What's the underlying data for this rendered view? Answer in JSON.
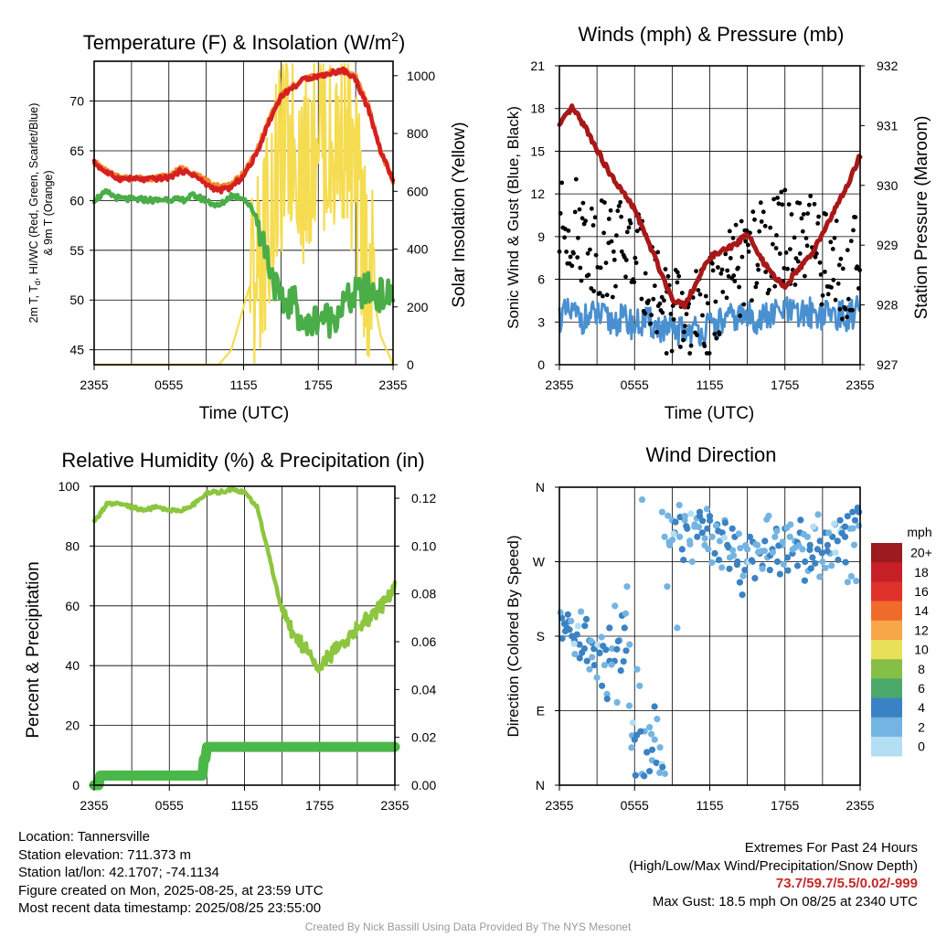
{
  "chart_data": [
    {
      "type": "line",
      "title": "Temperature (F) & Insolation (W/m2)",
      "title_parts": [
        "Temperature (F) & Insolation (W/m",
        "2",
        ")"
      ],
      "xlabel": "Time (UTC)",
      "ylabel_left": [
        "2m T, Td, HI/WC (Red, Green, Scarlet/Blue)",
        "& 9m T (Orange)"
      ],
      "ylabel_left_parts": [
        "2m T, T",
        "d",
        ", HI/WC (Red, Green, Scarlet/Blue)"
      ],
      "ylabel_right": "Solar Insolation (Yellow)",
      "x_ticks": [
        "2355",
        "0555",
        "1155",
        "1755",
        "2355"
      ],
      "ylim_left": [
        43.5,
        74
      ],
      "y_ticks_left": [
        45,
        50,
        55,
        60,
        65,
        70
      ],
      "ylim_right": [
        0,
        1050
      ],
      "y_ticks_right": [
        0,
        200,
        400,
        600,
        800,
        1000
      ],
      "grid": true,
      "x_hours": [
        0,
        1,
        2,
        3,
        4,
        5,
        6,
        7,
        8,
        9,
        10,
        11,
        12,
        13,
        14,
        15,
        16,
        17,
        18,
        19,
        20,
        21,
        22,
        23,
        24
      ],
      "series": [
        {
          "key": "temp_9m",
          "axis": "left",
          "color": "#f28a2e",
          "values": [
            63.9,
            62.9,
            62.3,
            62.3,
            62.2,
            62.3,
            62.5,
            63.2,
            62.8,
            61.9,
            61.4,
            61.6,
            62.7,
            64.8,
            68.0,
            70.6,
            71.5,
            72.3,
            72.5,
            72.9,
            73.1,
            72.5,
            69.5,
            65.0,
            62.0
          ]
        },
        {
          "key": "temp_2m",
          "axis": "left",
          "color": "#d62020",
          "values": [
            63.8,
            62.8,
            62.2,
            62.2,
            62.1,
            62.2,
            62.3,
            63.0,
            62.6,
            61.6,
            61.0,
            61.3,
            62.5,
            64.6,
            67.8,
            70.5,
            71.4,
            72.3,
            72.5,
            72.8,
            73.1,
            72.2,
            69.2,
            65.0,
            62.0
          ]
        },
        {
          "key": "dewpoint",
          "axis": "left",
          "color": "#4aad48",
          "values": [
            60.1,
            60.8,
            60.2,
            60.1,
            60.1,
            60.0,
            60.2,
            60.0,
            60.5,
            60.0,
            59.4,
            60.5,
            60.3,
            58.5,
            54.0,
            49.5,
            50.0,
            47.0,
            48.5,
            48.0,
            49.5,
            50.5,
            51.0,
            50.5,
            50.3
          ]
        },
        {
          "key": "solar",
          "axis": "right",
          "color": "#f5dc50",
          "values": [
            0,
            0,
            0,
            0,
            0,
            0,
            0,
            0,
            0,
            0,
            0,
            50,
            200,
            350,
            500,
            700,
            800,
            650,
            900,
            700,
            850,
            600,
            350,
            100,
            0
          ]
        }
      ]
    },
    {
      "type": "line",
      "title": "Winds (mph) & Pressure (mb)",
      "xlabel": "Time (UTC)",
      "ylabel_left": "Sonic Wind & Gust (Blue, Black)",
      "ylabel_right": "Station Pressure (Maroon)",
      "x_ticks": [
        "2355",
        "0555",
        "1155",
        "1755",
        "2355"
      ],
      "ylim_left": [
        0,
        21
      ],
      "y_ticks_left": [
        0,
        3,
        6,
        9,
        12,
        15,
        18,
        21
      ],
      "ylim_right": [
        927,
        932
      ],
      "y_ticks_right": [
        927,
        928,
        929,
        930,
        931,
        932
      ],
      "grid": true,
      "x_hours": [
        0,
        1,
        2,
        3,
        4,
        5,
        6,
        7,
        8,
        9,
        10,
        11,
        12,
        13,
        14,
        15,
        16,
        17,
        18,
        19,
        20,
        21,
        22,
        23,
        24
      ],
      "series": [
        {
          "key": "wind",
          "axis": "left",
          "color": "#4a90d0",
          "values": [
            3.4,
            3.6,
            3.2,
            3.5,
            3.0,
            3.2,
            2.8,
            3.0,
            2.6,
            2.2,
            2.5,
            2.4,
            2.6,
            3.0,
            3.3,
            3.4,
            3.2,
            3.5,
            3.8,
            3.4,
            3.7,
            3.5,
            3.6,
            3.3,
            4.0
          ]
        },
        {
          "key": "gust_mean",
          "axis": "left",
          "color": "#000000",
          "values": [
            9.5,
            10.0,
            9.0,
            8.5,
            8.0,
            8.5,
            7.5,
            6.5,
            5.0,
            3.5,
            3.0,
            3.2,
            4.0,
            5.5,
            6.5,
            7.5,
            8.0,
            8.5,
            9.0,
            8.0,
            8.5,
            7.5,
            7.0,
            6.5,
            8.0
          ]
        },
        {
          "key": "pressure",
          "axis": "right",
          "color": "#a81818",
          "values": [
            931.0,
            931.3,
            931.0,
            930.6,
            930.2,
            929.9,
            929.6,
            929.1,
            928.6,
            928.1,
            928.0,
            928.4,
            928.8,
            928.9,
            929.0,
            929.2,
            928.8,
            928.5,
            928.3,
            928.6,
            928.8,
            929.2,
            929.6,
            930.0,
            930.5
          ]
        }
      ]
    },
    {
      "type": "line",
      "title": "Relative Humidity (%) & Precipitation (in)",
      "xlabel": "",
      "ylabel_left": "Percent & Precipitation",
      "x_ticks": [
        "2355",
        "0555",
        "1155",
        "1755",
        "2355"
      ],
      "ylim_left": [
        0,
        100
      ],
      "y_ticks_left": [
        0,
        20,
        40,
        60,
        80,
        100
      ],
      "ylim_right": [
        0,
        0.125
      ],
      "y_ticks_right": [
        "0.00",
        "0.02",
        "0.04",
        "0.06",
        "0.08",
        "0.10",
        "0.12"
      ],
      "grid": true,
      "x_hours": [
        0,
        1,
        2,
        3,
        4,
        5,
        6,
        7,
        8,
        9,
        10,
        11,
        12,
        13,
        14,
        15,
        16,
        17,
        18,
        19,
        20,
        21,
        22,
        23,
        24
      ],
      "series": [
        {
          "key": "rh",
          "axis": "left",
          "color": "#8cc63e",
          "values": [
            88,
            94,
            94,
            93,
            92,
            93,
            92,
            92,
            94,
            98,
            98,
            99,
            98,
            93,
            76,
            58,
            50,
            45,
            40,
            44,
            48,
            53,
            56,
            60,
            66
          ]
        },
        {
          "key": "precip",
          "axis": "right",
          "color": "#4ab848",
          "values": [
            0.0,
            0.004,
            0.004,
            0.004,
            0.004,
            0.004,
            0.004,
            0.004,
            0.004,
            0.016,
            0.016,
            0.016,
            0.016,
            0.016,
            0.016,
            0.016,
            0.016,
            0.016,
            0.016,
            0.016,
            0.016,
            0.016,
            0.016,
            0.016,
            0.016
          ]
        }
      ]
    },
    {
      "type": "scatter",
      "title": "Wind Direction",
      "xlabel": "",
      "ylabel": "Direction (Colored By Speed)",
      "x_ticks": [
        "2355",
        "0555",
        "1155",
        "1755",
        "2355"
      ],
      "y_ticks": [
        "N",
        "E",
        "S",
        "W",
        "N"
      ],
      "ylim": [
        0,
        360
      ],
      "grid": true,
      "colorbar_title": "mph",
      "colorbar_labels": [
        "20+",
        "18",
        "16",
        "14",
        "12",
        "10",
        "8",
        "6",
        "4",
        "2",
        "0"
      ],
      "colorbar_colors": [
        "#9b1b1e",
        "#c62026",
        "#e0302c",
        "#f06a2a",
        "#f8a748",
        "#e9e05a",
        "#86bf46",
        "#4aa86a",
        "#3a82c4",
        "#74b4e2",
        "#b4def4"
      ],
      "points": [
        [
          0.2,
          202,
          4
        ],
        [
          0.4,
          195,
          4
        ],
        [
          0.6,
          190,
          3
        ],
        [
          0.8,
          188,
          4
        ],
        [
          1.0,
          180,
          3
        ],
        [
          1.2,
          175,
          4
        ],
        [
          1.4,
          182,
          3
        ],
        [
          1.6,
          170,
          4
        ],
        [
          1.8,
          160,
          3
        ],
        [
          2.0,
          165,
          4
        ],
        [
          2.2,
          150,
          3
        ],
        [
          2.4,
          140,
          2
        ],
        [
          2.6,
          172,
          4
        ],
        [
          2.8,
          145,
          3
        ],
        [
          3.0,
          130,
          2
        ],
        [
          3.2,
          160,
          3
        ],
        [
          3.4,
          120,
          4
        ],
        [
          3.6,
          145,
          2
        ],
        [
          3.8,
          110,
          2
        ],
        [
          4.0,
          190,
          4
        ],
        [
          4.2,
          165,
          2
        ],
        [
          4.4,
          150,
          3
        ],
        [
          4.6,
          100,
          2
        ],
        [
          4.8,
          175,
          2
        ],
        [
          5.0,
          205,
          3
        ],
        [
          5.2,
          190,
          4
        ],
        [
          5.4,
          240,
          2
        ],
        [
          5.6,
          170,
          2
        ],
        [
          5.8,
          60,
          2
        ],
        [
          6.0,
          55,
          3
        ],
        [
          6.2,
          140,
          1
        ],
        [
          6.4,
          120,
          1
        ],
        [
          6.6,
          345,
          2
        ],
        [
          6.8,
          65,
          2
        ],
        [
          7.0,
          40,
          1
        ],
        [
          7.2,
          70,
          2
        ],
        [
          7.4,
          30,
          1
        ],
        [
          7.6,
          55,
          2
        ],
        [
          7.8,
          80,
          2
        ],
        [
          8.0,
          15,
          1
        ],
        [
          8.2,
          330,
          1
        ],
        [
          8.4,
          300,
          2
        ],
        [
          8.6,
          240,
          1
        ],
        [
          8.8,
          290,
          2
        ],
        [
          9.0,
          320,
          2
        ],
        [
          9.2,
          305,
          3
        ],
        [
          9.4,
          190,
          1
        ],
        [
          9.6,
          300,
          2
        ],
        [
          9.8,
          285,
          3
        ],
        [
          10.0,
          320,
          2
        ],
        [
          10.2,
          310,
          3
        ],
        [
          10.4,
          295,
          2
        ],
        [
          10.6,
          270,
          1
        ],
        [
          10.8,
          315,
          2
        ],
        [
          11.0,
          300,
          4
        ],
        [
          11.2,
          330,
          4
        ],
        [
          11.4,
          305,
          3
        ],
        [
          11.6,
          290,
          2
        ],
        [
          11.8,
          310,
          3
        ],
        [
          12.0,
          325,
          4
        ],
        [
          12.2,
          300,
          2
        ],
        [
          12.4,
          280,
          3
        ],
        [
          12.6,
          315,
          4
        ],
        [
          12.8,
          295,
          2
        ],
        [
          13.0,
          305,
          3
        ],
        [
          13.2,
          320,
          2
        ],
        [
          13.4,
          290,
          4
        ],
        [
          13.6,
          275,
          2
        ],
        [
          13.8,
          310,
          3
        ],
        [
          14.0,
          300,
          4
        ],
        [
          14.2,
          270,
          3
        ],
        [
          14.4,
          245,
          4
        ],
        [
          14.6,
          230,
          3
        ],
        [
          14.8,
          260,
          4
        ],
        [
          15.0,
          285,
          2
        ],
        [
          15.2,
          300,
          4
        ],
        [
          15.4,
          270,
          3
        ],
        [
          15.6,
          250,
          4
        ],
        [
          15.8,
          290,
          2
        ],
        [
          16.0,
          280,
          3
        ],
        [
          16.2,
          265,
          4
        ],
        [
          16.4,
          295,
          3
        ],
        [
          16.6,
          275,
          2
        ],
        [
          16.8,
          260,
          4
        ],
        [
          17.0,
          285,
          3
        ],
        [
          17.2,
          300,
          2
        ],
        [
          17.4,
          270,
          4
        ],
        [
          17.6,
          255,
          3
        ],
        [
          17.8,
          290,
          2
        ],
        [
          18.0,
          310,
          3
        ],
        [
          18.2,
          275,
          4
        ],
        [
          18.4,
          300,
          2
        ],
        [
          18.6,
          280,
          3
        ],
        [
          18.8,
          295,
          2
        ],
        [
          19.0,
          265,
          3
        ],
        [
          19.2,
          305,
          4
        ],
        [
          19.4,
          285,
          2
        ],
        [
          19.6,
          270,
          3
        ],
        [
          19.8,
          300,
          2
        ],
        [
          20.0,
          290,
          4
        ],
        [
          20.2,
          275,
          3
        ],
        [
          20.4,
          310,
          2
        ],
        [
          20.6,
          285,
          4
        ],
        [
          20.8,
          295,
          3
        ],
        [
          21.0,
          270,
          2
        ],
        [
          21.2,
          305,
          3
        ],
        [
          21.4,
          290,
          4
        ],
        [
          21.6,
          280,
          2
        ],
        [
          21.8,
          300,
          3
        ],
        [
          22.0,
          315,
          2
        ],
        [
          22.2,
          295,
          3
        ],
        [
          22.4,
          320,
          4
        ],
        [
          22.6,
          310,
          2
        ],
        [
          22.8,
          300,
          3
        ],
        [
          23.0,
          325,
          4
        ],
        [
          23.2,
          310,
          2
        ],
        [
          23.4,
          330,
          3
        ],
        [
          23.6,
          320,
          4
        ],
        [
          23.8,
          335,
          3
        ],
        [
          23.9,
          330,
          4
        ]
      ]
    }
  ],
  "footer": {
    "location": "Location: Tannersville",
    "elevation": "Station elevation: 711.373 m",
    "latlon": "Station lat/lon: 42.1707; -74.1134",
    "created": "Figure created on Mon, 2025-08-25, at 23:59 UTC",
    "recent": "Most recent data timestamp: 2025/08/25 23:55:00",
    "extremes_title": "Extremes For Past 24 Hours",
    "extremes_subtitle": "(High/Low/Max Wind/Precipitation/Snow Depth)",
    "extremes_values": "73.7/59.7/5.5/0.02/-999",
    "max_gust": "Max Gust: 18.5 mph On 08/25 at 2340 UTC",
    "credit": "Created By Nick Bassill Using Data Provided By The NYS Mesonet"
  }
}
